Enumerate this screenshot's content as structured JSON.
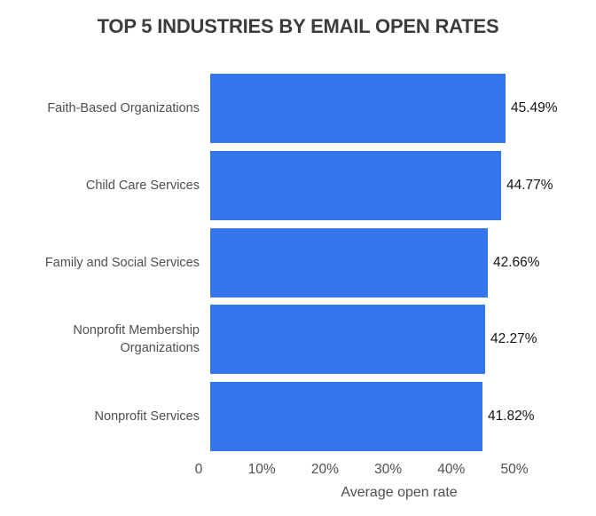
{
  "chart_data": {
    "type": "bar",
    "orientation": "horizontal",
    "title": "TOP 5 INDUSTRIES BY EMAIL OPEN RATES",
    "categories": [
      "Faith-Based Organizations",
      "Child Care Services",
      "Family and Social Services",
      "Nonprofit Membership Organizations",
      "Nonprofit Services"
    ],
    "values": [
      45.49,
      44.77,
      42.66,
      42.27,
      41.82
    ],
    "value_labels": [
      "45.49%",
      "44.77%",
      "42.66%",
      "42.27%",
      "41.82%"
    ],
    "xlabel": "Average open rate",
    "x_ticks": [
      "0",
      "10%",
      "20%",
      "30%",
      "40%",
      "50%"
    ],
    "xlim": [
      0,
      50
    ],
    "grid": false,
    "legend": "none",
    "bar_color": "#3476ED"
  },
  "colors": {
    "background": "#ffffff",
    "bar": "#3476ED",
    "title_text": "#3c3c3c",
    "axis_text": "#4f4f4f",
    "value_text": "#141414"
  }
}
